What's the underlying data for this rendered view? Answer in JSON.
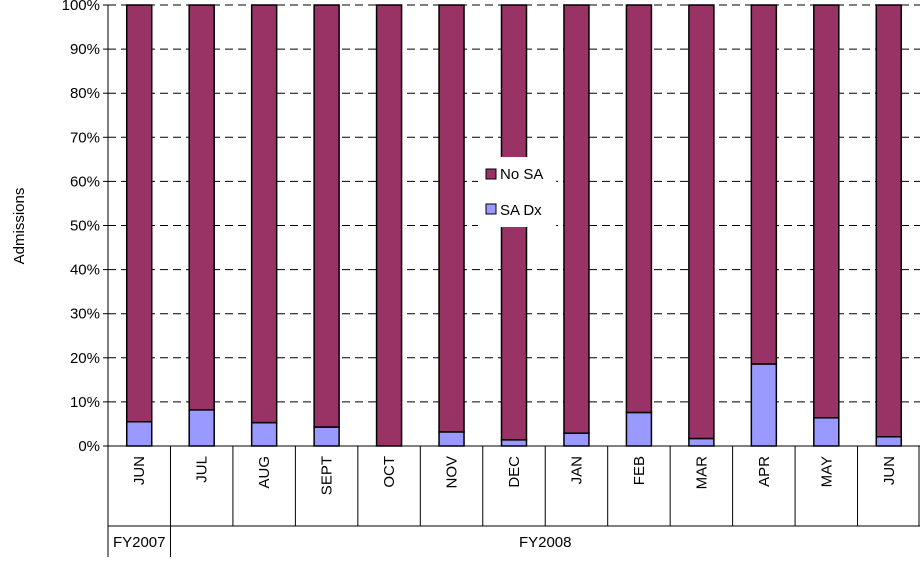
{
  "chart_data": {
    "type": "bar",
    "stacked": "percent",
    "ylabel": "Admissions",
    "yticks": [
      "0%",
      "10%",
      "20%",
      "30%",
      "40%",
      "50%",
      "60%",
      "70%",
      "80%",
      "90%",
      "100%"
    ],
    "ylim": [
      0,
      100
    ],
    "grid": "horizontal dashed",
    "legend_position": "center",
    "categories": [
      "JUN",
      "JUL",
      "AUG",
      "SEPT",
      "OCT",
      "NOV",
      "DEC",
      "JAN",
      "FEB",
      "MAR",
      "APR",
      "MAY",
      "JUN"
    ],
    "groups": [
      {
        "label": "FY2007",
        "span": 1
      },
      {
        "label": "FY2008",
        "span": 12
      }
    ],
    "series": [
      {
        "name": "SA Dx",
        "color": "#9999ff",
        "values": [
          5.5,
          8.2,
          5.3,
          4.3,
          0.0,
          3.2,
          1.4,
          2.9,
          7.6,
          1.7,
          18.6,
          6.4,
          2.1
        ]
      },
      {
        "name": "No SA",
        "color": "#993366",
        "values": [
          94.5,
          91.8,
          94.7,
          95.7,
          100.0,
          96.8,
          98.6,
          97.1,
          92.4,
          98.3,
          81.4,
          93.6,
          97.9
        ]
      }
    ],
    "legend": [
      {
        "name": "No SA",
        "color": "#993366"
      },
      {
        "name": "SA Dx",
        "color": "#9999ff"
      }
    ]
  }
}
